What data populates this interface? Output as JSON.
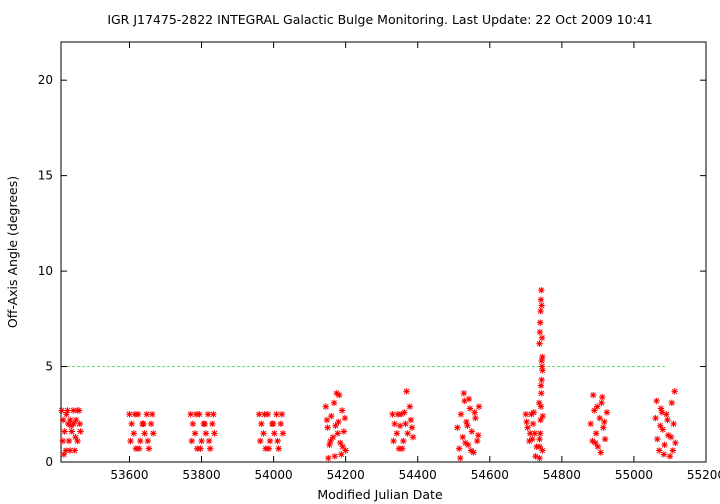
{
  "chart_data": {
    "type": "scatter",
    "title": "IGR J17475-2822   INTEGRAL Galactic Bulge Monitoring.  Last Update: 22 Oct 2009 10:41",
    "xlabel": "Modified Julian Date",
    "ylabel": "Off-Axis Angle (degrees)",
    "xlim": [
      53410,
      55200
    ],
    "ylim": [
      0,
      22
    ],
    "x_ticks": [
      53600,
      53800,
      54000,
      54200,
      54400,
      54600,
      54800,
      55000,
      55200
    ],
    "y_ticks": [
      0,
      5,
      10,
      15,
      20
    ],
    "grid": false,
    "reference_line": {
      "y": 5,
      "color": "#66dd66",
      "style": "dashed"
    },
    "marker": "asterisk",
    "marker_color": "#ff0000",
    "series": [
      {
        "points": [
          [
            53412,
            2.7
          ],
          [
            53416,
            2.2
          ],
          [
            53420,
            1.6
          ],
          [
            53424,
            0.6
          ],
          [
            53428,
            2.7
          ],
          [
            53432,
            1.1
          ],
          [
            53436,
            2.2
          ],
          [
            53440,
            1.6
          ],
          [
            53444,
            2.7
          ],
          [
            53448,
            0.6
          ],
          [
            53452,
            2.2
          ],
          [
            53456,
            1.1
          ],
          [
            53460,
            2.7
          ],
          [
            53464,
            1.6
          ],
          [
            53415,
            1.1
          ],
          [
            53425,
            2.5
          ],
          [
            53435,
            0.6
          ],
          [
            53445,
            2.0
          ],
          [
            53455,
            2.7
          ],
          [
            53462,
            2.0
          ],
          [
            53418,
            0.4
          ],
          [
            53438,
            1.9
          ],
          [
            53450,
            1.3
          ],
          [
            53430,
            2.0
          ],
          [
            53600,
            2.5
          ],
          [
            53606,
            2.0
          ],
          [
            53612,
            1.5
          ],
          [
            53618,
            0.7
          ],
          [
            53624,
            2.5
          ],
          [
            53630,
            1.1
          ],
          [
            53636,
            2.0
          ],
          [
            53642,
            1.5
          ],
          [
            53648,
            2.5
          ],
          [
            53654,
            0.7
          ],
          [
            53660,
            2.0
          ],
          [
            53666,
            1.5
          ],
          [
            53603,
            1.1
          ],
          [
            53615,
            2.5
          ],
          [
            53627,
            0.7
          ],
          [
            53639,
            2.0
          ],
          [
            53651,
            1.1
          ],
          [
            53663,
            2.5
          ],
          [
            53770,
            2.5
          ],
          [
            53776,
            2.0
          ],
          [
            53782,
            1.5
          ],
          [
            53788,
            0.7
          ],
          [
            53794,
            2.5
          ],
          [
            53800,
            1.1
          ],
          [
            53806,
            2.0
          ],
          [
            53812,
            1.5
          ],
          [
            53818,
            2.5
          ],
          [
            53824,
            0.7
          ],
          [
            53830,
            2.0
          ],
          [
            53836,
            1.5
          ],
          [
            53773,
            1.1
          ],
          [
            53785,
            2.5
          ],
          [
            53797,
            0.7
          ],
          [
            53809,
            2.0
          ],
          [
            53821,
            1.1
          ],
          [
            53833,
            2.5
          ],
          [
            53960,
            2.5
          ],
          [
            53966,
            2.0
          ],
          [
            53972,
            1.5
          ],
          [
            53978,
            0.7
          ],
          [
            53984,
            2.5
          ],
          [
            53990,
            1.1
          ],
          [
            53996,
            2.0
          ],
          [
            54002,
            1.5
          ],
          [
            54008,
            2.5
          ],
          [
            54014,
            0.7
          ],
          [
            54020,
            2.0
          ],
          [
            54026,
            1.5
          ],
          [
            53963,
            1.1
          ],
          [
            53975,
            2.5
          ],
          [
            53987,
            0.7
          ],
          [
            53999,
            2.0
          ],
          [
            54011,
            1.1
          ],
          [
            54023,
            2.5
          ],
          [
            54145,
            2.9
          ],
          [
            54150,
            1.8
          ],
          [
            54155,
            0.9
          ],
          [
            54160,
            2.4
          ],
          [
            54165,
            1.3
          ],
          [
            54170,
            0.3
          ],
          [
            54175,
            3.6
          ],
          [
            54180,
            2.1
          ],
          [
            54185,
            1.0
          ],
          [
            54190,
            2.7
          ],
          [
            54195,
            1.6
          ],
          [
            54200,
            0.6
          ],
          [
            54148,
            2.2
          ],
          [
            54158,
            1.1
          ],
          [
            54168,
            3.1
          ],
          [
            54178,
            1.5
          ],
          [
            54188,
            0.4
          ],
          [
            54198,
            2.3
          ],
          [
            54182,
            3.5
          ],
          [
            54152,
            0.2
          ],
          [
            54172,
            1.9
          ],
          [
            54192,
            0.8
          ],
          [
            54330,
            2.5
          ],
          [
            54336,
            2.0
          ],
          [
            54342,
            1.5
          ],
          [
            54348,
            0.7
          ],
          [
            54354,
            2.5
          ],
          [
            54360,
            1.1
          ],
          [
            54366,
            2.0
          ],
          [
            54372,
            1.5
          ],
          [
            54378,
            2.9
          ],
          [
            54384,
            1.8
          ],
          [
            54333,
            1.1
          ],
          [
            54345,
            2.5
          ],
          [
            54357,
            0.7
          ],
          [
            54369,
            3.7
          ],
          [
            54381,
            2.2
          ],
          [
            54387,
            1.3
          ],
          [
            54363,
            2.6
          ],
          [
            54351,
            1.9
          ],
          [
            54510,
            1.8
          ],
          [
            54515,
            0.7
          ],
          [
            54520,
            2.5
          ],
          [
            54525,
            1.3
          ],
          [
            54530,
            3.2
          ],
          [
            54535,
            2.1
          ],
          [
            54540,
            0.9
          ],
          [
            54545,
            2.8
          ],
          [
            54550,
            1.6
          ],
          [
            54555,
            0.5
          ],
          [
            54560,
            2.3
          ],
          [
            54565,
            1.1
          ],
          [
            54570,
            2.9
          ],
          [
            54518,
            0.2
          ],
          [
            54528,
            3.6
          ],
          [
            54538,
            1.9
          ],
          [
            54548,
            0.6
          ],
          [
            54558,
            2.6
          ],
          [
            54568,
            1.4
          ],
          [
            54542,
            3.3
          ],
          [
            54532,
            1.0
          ],
          [
            54700,
            2.5
          ],
          [
            54705,
            1.8
          ],
          [
            54710,
            1.1
          ],
          [
            54715,
            2.5
          ],
          [
            54720,
            2.0
          ],
          [
            54725,
            1.5
          ],
          [
            54730,
            0.8
          ],
          [
            54702,
            2.1
          ],
          [
            54712,
            1.5
          ],
          [
            54722,
            2.6
          ],
          [
            54727,
            0.3
          ],
          [
            54718,
            1.2
          ],
          [
            54738,
            0.2
          ],
          [
            54739,
            0.8
          ],
          [
            54740,
            1.5
          ],
          [
            54741,
            2.2
          ],
          [
            54742,
            2.9
          ],
          [
            54743,
            3.6
          ],
          [
            54744,
            4.3
          ],
          [
            54745,
            5.0
          ],
          [
            54746,
            5.5
          ],
          [
            54738,
            6.2
          ],
          [
            54739,
            6.8
          ],
          [
            54740,
            7.3
          ],
          [
            54741,
            7.9
          ],
          [
            54742,
            8.5
          ],
          [
            54743,
            9.0
          ],
          [
            54744,
            8.2
          ],
          [
            54745,
            6.5
          ],
          [
            54746,
            4.8
          ],
          [
            54737,
            3.1
          ],
          [
            54747,
            2.4
          ],
          [
            54738,
            1.2
          ],
          [
            54746,
            0.6
          ],
          [
            54742,
            4.0
          ],
          [
            54744,
            5.3
          ],
          [
            54880,
            2.0
          ],
          [
            54885,
            1.1
          ],
          [
            54890,
            2.7
          ],
          [
            54895,
            1.5
          ],
          [
            54900,
            0.8
          ],
          [
            54905,
            2.3
          ],
          [
            54910,
            3.1
          ],
          [
            54915,
            1.8
          ],
          [
            54920,
            1.2
          ],
          [
            54925,
            2.6
          ],
          [
            54887,
            3.5
          ],
          [
            54898,
            2.9
          ],
          [
            54908,
            0.5
          ],
          [
            54918,
            2.1
          ],
          [
            54893,
            1.0
          ],
          [
            54912,
            3.4
          ],
          [
            55060,
            2.3
          ],
          [
            55065,
            1.2
          ],
          [
            55070,
            0.6
          ],
          [
            55075,
            2.8
          ],
          [
            55080,
            1.7
          ],
          [
            55085,
            0.9
          ],
          [
            55090,
            2.5
          ],
          [
            55095,
            1.4
          ],
          [
            55100,
            0.3
          ],
          [
            55105,
            3.1
          ],
          [
            55110,
            2.0
          ],
          [
            55115,
            1.0
          ],
          [
            55063,
            3.2
          ],
          [
            55073,
            1.9
          ],
          [
            55083,
            0.4
          ],
          [
            55093,
            2.2
          ],
          [
            55103,
            1.3
          ],
          [
            55113,
            3.7
          ],
          [
            55108,
            0.6
          ],
          [
            55078,
            2.6
          ]
        ]
      }
    ]
  }
}
